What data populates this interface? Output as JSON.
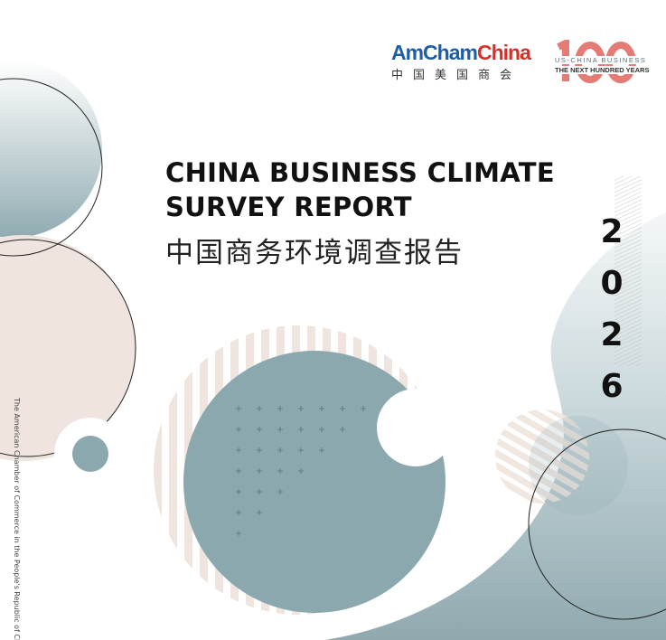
{
  "logo": {
    "amcham_en_1": "AmCham",
    "amcham_en_2": "China",
    "amcham_zh": "中国美国商会"
  },
  "centennial": {
    "number": "100",
    "line1": "US-CHINA BUSINESS",
    "line2": "THE NEXT HUNDRED YEARS"
  },
  "title": {
    "line1": "CHINA BUSINESS CLIMATE",
    "line2": "SURVEY REPORT",
    "zh": "中国商务环境调查报告"
  },
  "year_digits": [
    "2",
    "0",
    "2",
    "6"
  ],
  "side_text": "The American Chamber of Commerce in the People's Republic of China",
  "colors": {
    "teal": "#8ba8ae",
    "beige": "#efe4de",
    "blue": "#1d5ea8",
    "red": "#d6302a"
  }
}
